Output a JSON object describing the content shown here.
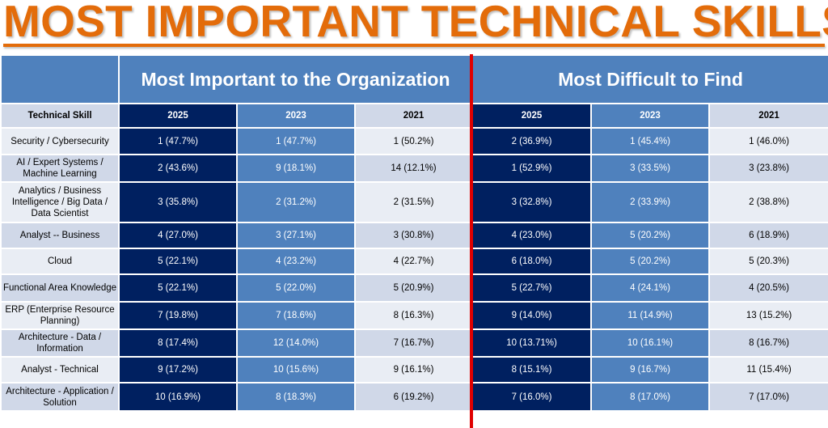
{
  "title": "MOST IMPORTANT TECHNICAL SKILLS",
  "groups": {
    "important": "Most Important to the Organization",
    "difficult": "Most Difficult to Find"
  },
  "headers": {
    "skill": "Technical Skill",
    "years": [
      "2025",
      "2023",
      "2021"
    ]
  },
  "colors": {
    "title": "#e36c0a",
    "dark": "#002060",
    "mid": "#4f81bd",
    "divider": "#e00000"
  },
  "rows": [
    {
      "skill": "Security / Cybersecurity",
      "important": [
        "1 (47.7%)",
        "1 (47.7%)",
        "1 (50.2%)"
      ],
      "difficult": [
        "2 (36.9%)",
        "1 (45.4%)",
        "1 (46.0%)"
      ]
    },
    {
      "skill": "AI / Expert Systems / Machine Learning",
      "important": [
        "2 (43.6%)",
        "9 (18.1%)",
        "14 (12.1%)"
      ],
      "difficult": [
        "1 (52.9%)",
        "3 (33.5%)",
        "3 (23.8%)"
      ]
    },
    {
      "skill": "Analytics / Business Intelligence / Big Data / Data Scientist",
      "important": [
        "3 (35.8%)",
        "2 (31.2%)",
        "2 (31.5%)"
      ],
      "difficult": [
        "3 (32.8%)",
        "2 (33.9%)",
        "2 (38.8%)"
      ]
    },
    {
      "skill": "Analyst -- Business",
      "important": [
        "4 (27.0%)",
        "3 (27.1%)",
        "3 (30.8%)"
      ],
      "difficult": [
        "4 (23.0%)",
        "5 (20.2%)",
        "6 (18.9%)"
      ]
    },
    {
      "skill": "Cloud",
      "important": [
        "5 (22.1%)",
        "4 (23.2%)",
        "4 (22.7%)"
      ],
      "difficult": [
        "6 (18.0%)",
        "5 (20.2%)",
        "5 (20.3%)"
      ]
    },
    {
      "skill": "Functional Area Knowledge",
      "important": [
        "5 (22.1%)",
        "5 (22.0%)",
        "5 (20.9%)"
      ],
      "difficult": [
        "5 (22.7%)",
        "4 (24.1%)",
        "4 (20.5%)"
      ]
    },
    {
      "skill": "ERP (Enterprise Resource Planning)",
      "important": [
        "7 (19.8%)",
        "7 (18.6%)",
        "8 (16.3%)"
      ],
      "difficult": [
        "9 (14.0%)",
        "11 (14.9%)",
        "13 (15.2%)"
      ]
    },
    {
      "skill": "Architecture - Data / Information",
      "important": [
        "8 (17.4%)",
        "12 (14.0%)",
        "7 (16.7%)"
      ],
      "difficult": [
        "10 (13.71%)",
        "10 (16.1%)",
        "8 (16.7%)"
      ]
    },
    {
      "skill": "Analyst - Technical",
      "important": [
        "9 (17.2%)",
        "10 (15.6%)",
        "9 (16.1%)"
      ],
      "difficult": [
        "8 (15.1%)",
        "9 (16.7%)",
        "11 (15.4%)"
      ]
    },
    {
      "skill": "Architecture - Application / Solution",
      "important": [
        "10 (16.9%)",
        "8 (18.3%)",
        "6 (19.2%)"
      ],
      "difficult": [
        "7 (16.0%)",
        "8 (17.0%)",
        "7 (17.0%)"
      ]
    }
  ]
}
